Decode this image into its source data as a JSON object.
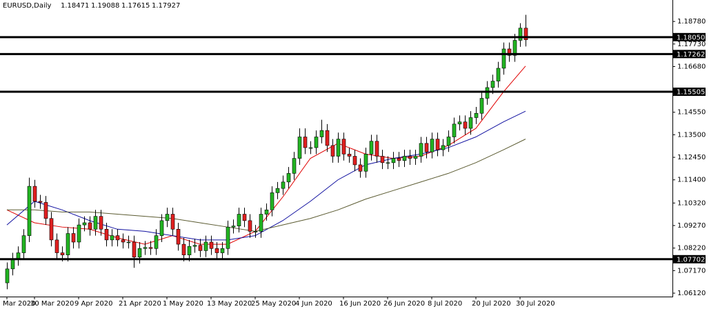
{
  "chart_data": {
    "type": "candlestick",
    "title": "EURUSD,Daily",
    "up_color": "#22b422",
    "down_color": "#e02020",
    "categories": [
      "Mar 2020",
      null,
      null,
      null,
      null,
      "30 Mar 2020",
      null,
      null,
      null,
      null,
      null,
      null,
      null,
      "9 Apr 2020",
      null,
      null,
      null,
      null,
      null,
      null,
      null,
      "21 Apr 2020",
      null,
      null,
      null,
      null,
      null,
      null,
      null,
      "1 May 2020",
      null,
      null,
      null,
      null,
      null,
      null,
      null,
      "13 May 2020",
      null,
      null,
      null,
      null,
      null,
      null,
      null,
      "25 May 2020",
      null,
      null,
      null,
      null,
      null,
      null,
      null,
      "4 Jun 2020",
      null,
      null,
      null,
      null,
      null,
      null,
      null,
      "16 Jun 2020",
      null,
      null,
      null,
      null,
      null,
      null,
      null,
      "26 Jun 2020",
      null,
      null,
      null,
      null,
      null,
      null,
      null,
      "8 Jul 2020",
      null,
      null,
      null,
      null,
      null,
      null,
      null,
      "20 Jul 2020",
      null,
      null,
      null,
      null,
      null,
      null,
      null,
      "30 Jul 2020",
      null
    ],
    "open": [
      1.066,
      1.0725,
      1.077,
      1.08,
      1.088,
      1.111,
      1.104,
      1.1035,
      1.096,
      1.086,
      1.08,
      1.079,
      1.089,
      1.085,
      1.093,
      1.094,
      1.091,
      1.097,
      1.091,
      1.086,
      1.088,
      1.086,
      1.085,
      1.085,
      1.078,
      1.082,
      1.0825,
      1.082,
      1.088,
      1.095,
      1.098,
      1.091,
      1.084,
      1.079,
      1.083,
      1.0835,
      1.081,
      1.085,
      1.082,
      1.08,
      1.082,
      1.092,
      1.0925,
      1.098,
      1.095,
      1.09,
      1.09,
      1.098,
      1.1,
      1.108,
      1.11,
      1.113,
      1.117,
      1.124,
      1.134,
      1.129,
      1.129,
      1.134,
      1.137,
      1.13,
      1.125,
      1.133,
      1.126,
      1.125,
      1.121,
      1.118,
      1.126,
      1.132,
      1.125,
      1.122,
      1.122,
      1.124,
      1.123,
      1.125,
      1.124,
      1.125,
      1.131,
      1.127,
      1.133,
      1.128,
      1.13,
      1.134,
      1.14,
      1.141,
      1.138,
      1.143,
      1.145,
      1.152,
      1.157,
      1.16,
      1.166,
      1.175,
      1.172,
      1.179,
      1.18471
    ],
    "high": [
      1.0755,
      1.08,
      1.083,
      1.091,
      1.115,
      1.114,
      1.107,
      1.1065,
      1.099,
      1.089,
      1.083,
      1.092,
      1.092,
      1.096,
      1.097,
      1.097,
      1.1,
      1.1,
      1.094,
      1.091,
      1.091,
      1.089,
      1.088,
      1.088,
      1.085,
      1.0855,
      1.0855,
      1.091,
      1.098,
      1.101,
      1.101,
      1.094,
      1.087,
      1.086,
      1.0865,
      1.0865,
      1.088,
      1.088,
      1.085,
      1.085,
      1.095,
      1.0955,
      1.101,
      1.101,
      1.098,
      1.093,
      1.101,
      1.103,
      1.111,
      1.113,
      1.116,
      1.12,
      1.127,
      1.138,
      1.138,
      1.132,
      1.137,
      1.142,
      1.14,
      1.133,
      1.136,
      1.136,
      1.129,
      1.128,
      1.124,
      1.129,
      1.135,
      1.135,
      1.128,
      1.125,
      1.127,
      1.127,
      1.128,
      1.128,
      1.128,
      1.134,
      1.134,
      1.136,
      1.136,
      1.133,
      1.137,
      1.143,
      1.144,
      1.144,
      1.146,
      1.148,
      1.155,
      1.16,
      1.163,
      1.169,
      1.178,
      1.178,
      1.182,
      1.187,
      1.19088
    ],
    "low": [
      1.063,
      1.0695,
      1.074,
      1.077,
      1.085,
      1.101,
      1.1005,
      1.093,
      1.083,
      1.077,
      1.076,
      1.076,
      1.082,
      1.082,
      1.09,
      1.088,
      1.088,
      1.088,
      1.083,
      1.083,
      1.083,
      1.082,
      1.082,
      1.073,
      1.075,
      1.079,
      1.079,
      1.079,
      1.085,
      1.092,
      1.088,
      1.081,
      1.076,
      1.076,
      1.08,
      1.078,
      1.078,
      1.079,
      1.077,
      1.077,
      1.079,
      1.089,
      1.0895,
      1.092,
      1.087,
      1.087,
      1.087,
      1.095,
      1.097,
      1.105,
      1.107,
      1.11,
      1.114,
      1.121,
      1.126,
      1.126,
      1.126,
      1.131,
      1.127,
      1.122,
      1.122,
      1.123,
      1.122,
      1.118,
      1.115,
      1.115,
      1.123,
      1.122,
      1.119,
      1.119,
      1.119,
      1.12,
      1.12,
      1.121,
      1.121,
      1.122,
      1.124,
      1.124,
      1.125,
      1.125,
      1.127,
      1.131,
      1.137,
      1.135,
      1.135,
      1.14,
      1.142,
      1.149,
      1.154,
      1.157,
      1.163,
      1.169,
      1.169,
      1.176,
      1.17615
    ],
    "close": [
      1.0725,
      1.077,
      1.08,
      1.088,
      1.111,
      1.104,
      1.1035,
      1.096,
      1.086,
      1.08,
      1.079,
      1.089,
      1.085,
      1.093,
      1.094,
      1.091,
      1.097,
      1.091,
      1.086,
      1.088,
      1.086,
      1.085,
      1.085,
      1.078,
      1.082,
      1.0825,
      1.082,
      1.088,
      1.095,
      1.098,
      1.091,
      1.084,
      1.079,
      1.083,
      1.0835,
      1.081,
      1.085,
      1.082,
      1.08,
      1.082,
      1.092,
      1.0925,
      1.098,
      1.095,
      1.09,
      1.09,
      1.098,
      1.1,
      1.108,
      1.11,
      1.113,
      1.117,
      1.124,
      1.134,
      1.129,
      1.129,
      1.134,
      1.137,
      1.13,
      1.125,
      1.133,
      1.126,
      1.125,
      1.121,
      1.118,
      1.126,
      1.132,
      1.125,
      1.122,
      1.122,
      1.124,
      1.123,
      1.125,
      1.124,
      1.125,
      1.131,
      1.127,
      1.133,
      1.128,
      1.13,
      1.134,
      1.14,
      1.141,
      1.138,
      1.143,
      1.145,
      1.152,
      1.157,
      1.16,
      1.166,
      1.175,
      1.172,
      1.179,
      1.18471,
      1.17927
    ],
    "moving_averages": [
      {
        "color": "#e00000",
        "x": [
          0,
          5,
          10,
          15,
          20,
          25,
          30,
          35,
          40,
          45,
          50,
          55,
          60,
          65,
          70,
          75,
          80,
          85,
          90,
          94
        ],
        "values": [
          1.1,
          1.094,
          1.092,
          1.091,
          1.087,
          1.084,
          1.088,
          1.084,
          1.084,
          1.09,
          1.106,
          1.124,
          1.131,
          1.126,
          1.124,
          1.125,
          1.13,
          1.138,
          1.155,
          1.167
        ]
      },
      {
        "color": "#1010a0",
        "x": [
          0,
          5,
          10,
          15,
          20,
          25,
          30,
          35,
          40,
          45,
          50,
          55,
          60,
          65,
          70,
          75,
          80,
          85,
          90,
          94
        ],
        "values": [
          1.093,
          1.104,
          1.1,
          1.095,
          1.091,
          1.09,
          1.088,
          1.086,
          1.086,
          1.088,
          1.095,
          1.104,
          1.114,
          1.121,
          1.124,
          1.126,
          1.129,
          1.134,
          1.141,
          1.146
        ]
      },
      {
        "color": "#5a5a30",
        "x": [
          0,
          5,
          10,
          15,
          20,
          25,
          30,
          35,
          40,
          45,
          50,
          55,
          60,
          65,
          70,
          75,
          80,
          85,
          90,
          94
        ],
        "values": [
          1.1,
          1.1,
          1.099,
          1.099,
          1.098,
          1.097,
          1.096,
          1.094,
          1.092,
          1.09,
          1.093,
          1.096,
          1.1,
          1.105,
          1.109,
          1.113,
          1.117,
          1.122,
          1.128,
          1.133
        ]
      }
    ],
    "levels": [
      {
        "value": 1.1805,
        "label": "1.18050"
      },
      {
        "value": 1.17262,
        "label": "1.17262"
      },
      {
        "value": 1.15505,
        "label": "1.15505"
      },
      {
        "value": 1.07702,
        "label": "1.07702"
      }
    ],
    "ylim": [
      1.0596,
      1.1978
    ],
    "yticks": [
      {
        "value": 1.1878,
        "label": "1.18780"
      },
      {
        "value": 1.1773,
        "label": "1.17730"
      },
      {
        "value": 1.1668,
        "label": "1.16680"
      },
      {
        "value": 1.1455,
        "label": "1.14550"
      },
      {
        "value": 1.135,
        "label": "1.13500"
      },
      {
        "value": 1.1245,
        "label": "1.12450"
      },
      {
        "value": 1.114,
        "label": "1.11400"
      },
      {
        "value": 1.1032,
        "label": "1.10320"
      },
      {
        "value": 1.0927,
        "label": "1.09270"
      },
      {
        "value": 1.0822,
        "label": "1.08220"
      },
      {
        "value": 1.0717,
        "label": "1.07170"
      },
      {
        "value": 1.0612,
        "label": "1.06120"
      }
    ]
  }
}
